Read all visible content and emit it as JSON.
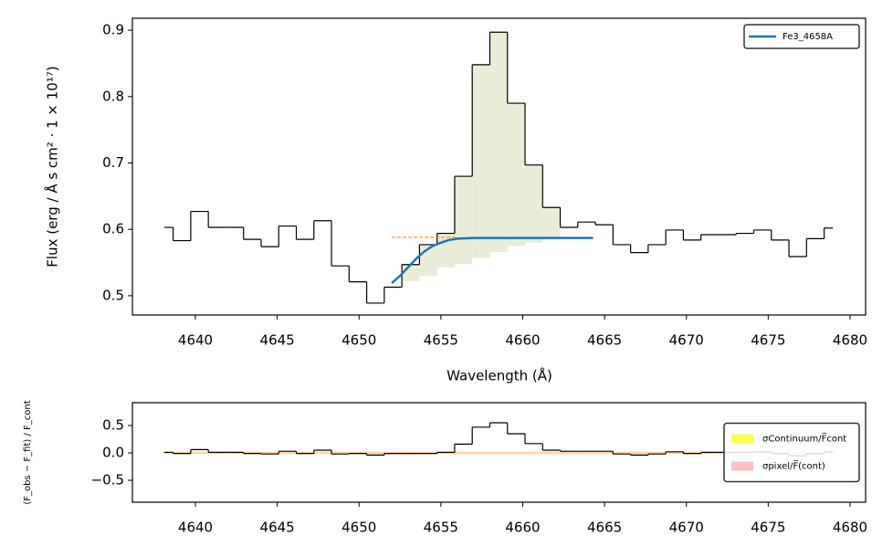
{
  "chart_data": [
    {
      "type": "step",
      "xlabel": "Wavelength (Å)",
      "ylabel": "Flux (erg / Å s cm² · 1 × 10¹⁷)",
      "xlim": [
        4636.15,
        4680.95
      ],
      "ylim": [
        0.471,
        0.918
      ],
      "xticks": [
        4640,
        4645,
        4650,
        4655,
        4660,
        4665,
        4670,
        4675,
        4680
      ],
      "yticks": [
        0.5,
        0.6,
        0.7,
        0.8,
        0.9
      ],
      "legend": "upper right",
      "series": [
        {
          "color": "#000000",
          "drawstyle": "steps-mid",
          "x": [
            4638.1,
            4639.18,
            4640.25,
            4641.33,
            4642.4,
            4643.48,
            4644.55,
            4645.63,
            4646.7,
            4647.78,
            4648.85,
            4649.93,
            4651.0,
            4652.08,
            4653.15,
            4654.23,
            4655.3,
            4656.38,
            4657.45,
            4658.53,
            4659.6,
            4660.68,
            4661.75,
            4662.83,
            4663.9,
            4664.98,
            4666.05,
            4667.13,
            4668.2,
            4669.28,
            4670.35,
            4671.43,
            4672.5,
            4673.58,
            4674.65,
            4675.73,
            4676.8,
            4677.88,
            4678.95
          ],
          "values": [
            0.603,
            0.583,
            0.627,
            0.603,
            0.603,
            0.585,
            0.574,
            0.605,
            0.585,
            0.613,
            0.545,
            0.521,
            0.489,
            0.513,
            0.547,
            0.577,
            0.594,
            0.68,
            0.848,
            0.897,
            0.79,
            0.697,
            0.633,
            0.603,
            0.611,
            0.607,
            0.577,
            0.565,
            0.577,
            0.599,
            0.584,
            0.592,
            0.592,
            0.594,
            0.599,
            0.584,
            0.559,
            0.586,
            0.602
          ],
          "fill_color": "#e9ecd6",
          "fill_lower": [
            null,
            null,
            null,
            null,
            null,
            null,
            null,
            null,
            null,
            null,
            null,
            null,
            null,
            null,
            0.522,
            0.53,
            0.543,
            0.548,
            0.557,
            0.566,
            0.575,
            0.58,
            0.585,
            null,
            null,
            null,
            null,
            null,
            null,
            null,
            null,
            null,
            null,
            null,
            null,
            null,
            null,
            null,
            null
          ]
        },
        {
          "name": "Fe3_4658A",
          "color": "#1f77b4",
          "drawstyle": "line",
          "x": [
            4652.0,
            4652.5,
            4653.0,
            4653.5,
            4654.0,
            4654.5,
            4655.0,
            4655.5,
            4656.0,
            4657.0,
            4660.0,
            4664.3
          ],
          "values": [
            0.519,
            0.53,
            0.543,
            0.556,
            0.567,
            0.575,
            0.58,
            0.584,
            0.586,
            0.587,
            0.587,
            0.587
          ]
        },
        {
          "color": "#ff7f0e",
          "drawstyle": "dashed",
          "x": [
            4652.0,
            4656.0
          ],
          "values": [
            0.588,
            0.588
          ]
        }
      ]
    },
    {
      "type": "step",
      "ylabel": "(F_obs − F_fit) / F_cont",
      "xlim": [
        4636.15,
        4680.95
      ],
      "ylim": [
        -0.9,
        0.917
      ],
      "xticks": [
        4640,
        4645,
        4650,
        4655,
        4660,
        4665,
        4670,
        4675,
        4680
      ],
      "yticks": [
        0.5,
        {
          "value": 0.0,
          "label": "0.0"
        },
        {
          "value": -0.5,
          "label": "−0.5"
        }
      ],
      "legend": "center right",
      "bands": [
        {
          "name": "σContinuum/F̅cont",
          "color": "#ffff55",
          "value": 0.025
        },
        {
          "name": "σpixel/F̅(cont)",
          "color": "#ffc0c0",
          "value": 0.02
        }
      ],
      "series": [
        {
          "color": "#000000",
          "drawstyle": "steps-mid",
          "x": [
            4638.1,
            4639.18,
            4640.25,
            4641.33,
            4642.4,
            4643.48,
            4644.55,
            4645.63,
            4646.7,
            4647.78,
            4648.85,
            4649.93,
            4651.0,
            4652.08,
            4653.15,
            4654.23,
            4655.3,
            4656.38,
            4657.45,
            4658.53,
            4659.6,
            4660.68,
            4661.75,
            4662.83,
            4663.9,
            4664.98,
            4666.05,
            4667.13,
            4668.2,
            4669.28,
            4670.35,
            4671.43,
            4672.5,
            4673.58,
            4674.65,
            4675.73,
            4676.8,
            4677.88,
            4678.95
          ],
          "values": [
            0.01,
            -0.01,
            0.06,
            0.01,
            0.01,
            -0.01,
            -0.02,
            0.03,
            -0.01,
            0.05,
            -0.02,
            -0.01,
            -0.04,
            -0.01,
            -0.01,
            -0.01,
            0.01,
            0.16,
            0.47,
            0.55,
            0.35,
            0.17,
            0.05,
            0.03,
            0.03,
            0.03,
            -0.02,
            -0.04,
            -0.02,
            0.02,
            -0.01,
            0.01,
            0.01,
            0.01,
            0.02,
            -0.01,
            -0.05,
            -0.01,
            0.02
          ]
        }
      ]
    }
  ]
}
